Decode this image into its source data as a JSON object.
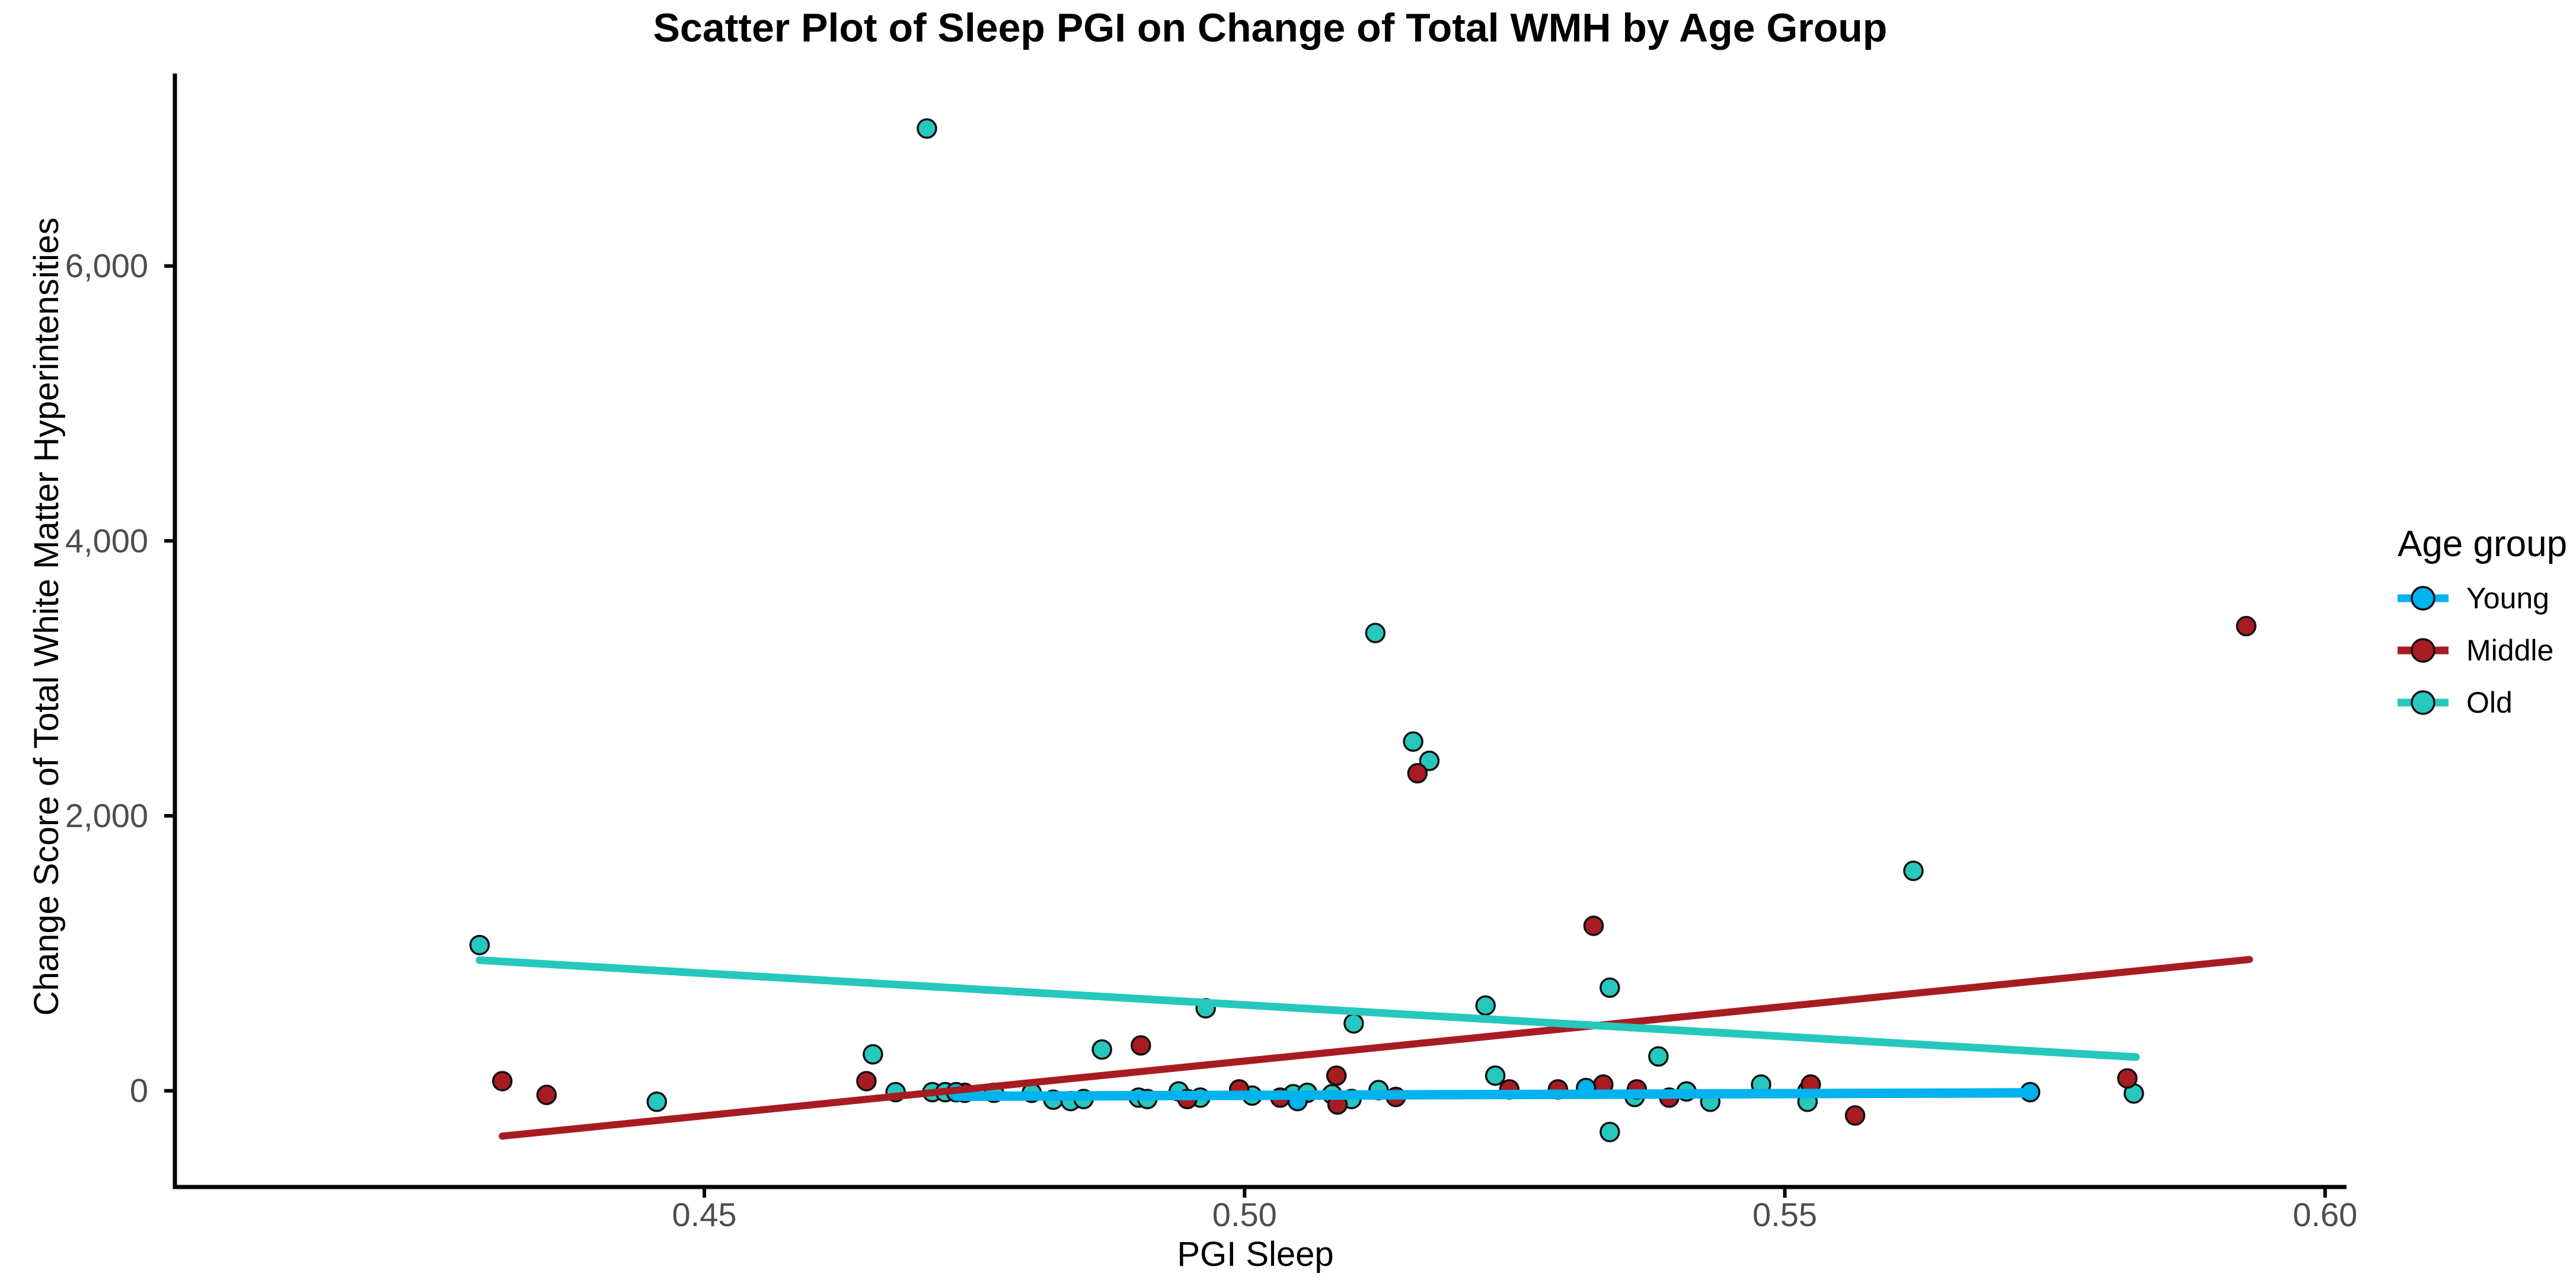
{
  "chart_data": {
    "type": "scatter",
    "title": "Scatter Plot of Sleep PGI on Change of Total WMH by Age Group",
    "xlabel": "PGI Sleep",
    "ylabel": "Change Score of Total White Matter Hyperintensities",
    "xlim": [
      0.401,
      0.601
    ],
    "ylim": [
      -700,
      7400
    ],
    "grid": false,
    "background": "#ffffff",
    "x_ticks": {
      "values": [
        0.45,
        0.5,
        0.55,
        0.6
      ],
      "labels": [
        "0.45",
        "0.50",
        "0.55",
        "0.60"
      ]
    },
    "y_ticks": {
      "values": [
        0,
        2000,
        4000,
        6000
      ],
      "labels": [
        "0",
        "2,000",
        "4,000",
        "6,000"
      ]
    },
    "legend": {
      "title": "Age group",
      "position": "right",
      "entries": [
        {
          "label": "Young",
          "color": "#00B2EE"
        },
        {
          "label": "Middle",
          "color": "#A81C21"
        },
        {
          "label": "Old",
          "color": "#26C8BE"
        }
      ]
    },
    "series": [
      {
        "name": "Young",
        "color": "#00B2EE",
        "points": [
          [
            0.4733,
            -10
          ],
          [
            0.5049,
            -75
          ],
          [
            0.5316,
            20
          ],
          [
            0.5727,
            -10
          ]
        ],
        "trend": {
          "x1": 0.4733,
          "y1": -40,
          "x2": 0.5727,
          "y2": -15
        }
      },
      {
        "name": "Middle",
        "color": "#A81C21",
        "points": [
          [
            0.4313,
            70
          ],
          [
            0.4354,
            -30
          ],
          [
            0.465,
            70
          ],
          [
            0.4741,
            -15
          ],
          [
            0.4904,
            330
          ],
          [
            0.4947,
            -60
          ],
          [
            0.4995,
            10
          ],
          [
            0.5033,
            -50
          ],
          [
            0.5085,
            110
          ],
          [
            0.5086,
            -100
          ],
          [
            0.514,
            -45
          ],
          [
            0.516,
            2310
          ],
          [
            0.5245,
            10
          ],
          [
            0.529,
            10
          ],
          [
            0.5323,
            1200
          ],
          [
            0.5332,
            45
          ],
          [
            0.5363,
            10
          ],
          [
            0.5393,
            -50
          ],
          [
            0.5524,
            45
          ],
          [
            0.5565,
            -180
          ],
          [
            0.5817,
            90
          ],
          [
            0.5927,
            3380
          ]
        ],
        "trend": {
          "x1": 0.4313,
          "y1": -330,
          "x2": 0.593,
          "y2": 955
        }
      },
      {
        "name": "Old",
        "color": "#26C8BE",
        "points": [
          [
            0.4292,
            1060
          ],
          [
            0.4456,
            -80
          ],
          [
            0.4656,
            265
          ],
          [
            0.4677,
            -10
          ],
          [
            0.4706,
            7000
          ],
          [
            0.4711,
            -10
          ],
          [
            0.4723,
            -10
          ],
          [
            0.4768,
            -15
          ],
          [
            0.4803,
            -15
          ],
          [
            0.4823,
            -65
          ],
          [
            0.4839,
            -75
          ],
          [
            0.4851,
            -60
          ],
          [
            0.4868,
            300
          ],
          [
            0.4902,
            -50
          ],
          [
            0.491,
            -60
          ],
          [
            0.4939,
            -5
          ],
          [
            0.4959,
            -50
          ],
          [
            0.4964,
            600
          ],
          [
            0.5007,
            -35
          ],
          [
            0.5045,
            -25
          ],
          [
            0.5058,
            -15
          ],
          [
            0.5081,
            -25
          ],
          [
            0.5099,
            -60
          ],
          [
            0.5101,
            490
          ],
          [
            0.5121,
            3330
          ],
          [
            0.5124,
            5
          ],
          [
            0.5156,
            2540
          ],
          [
            0.5171,
            2400
          ],
          [
            0.5223,
            620
          ],
          [
            0.5232,
            110
          ],
          [
            0.5338,
            750
          ],
          [
            0.5338,
            -300
          ],
          [
            0.5361,
            -45
          ],
          [
            0.5383,
            250
          ],
          [
            0.5409,
            -5
          ],
          [
            0.5431,
            -80
          ],
          [
            0.5478,
            45
          ],
          [
            0.5521,
            0
          ],
          [
            0.5521,
            -80
          ],
          [
            0.5619,
            1600
          ],
          [
            0.5823,
            -20
          ]
        ],
        "trend": {
          "x1": 0.4292,
          "y1": 950,
          "x2": 0.5825,
          "y2": 245
        }
      }
    ]
  },
  "colors": {
    "axis_line": "#000000",
    "tick_label": "#4d4d4d",
    "point_stroke": "#101010",
    "text": "#000000"
  }
}
